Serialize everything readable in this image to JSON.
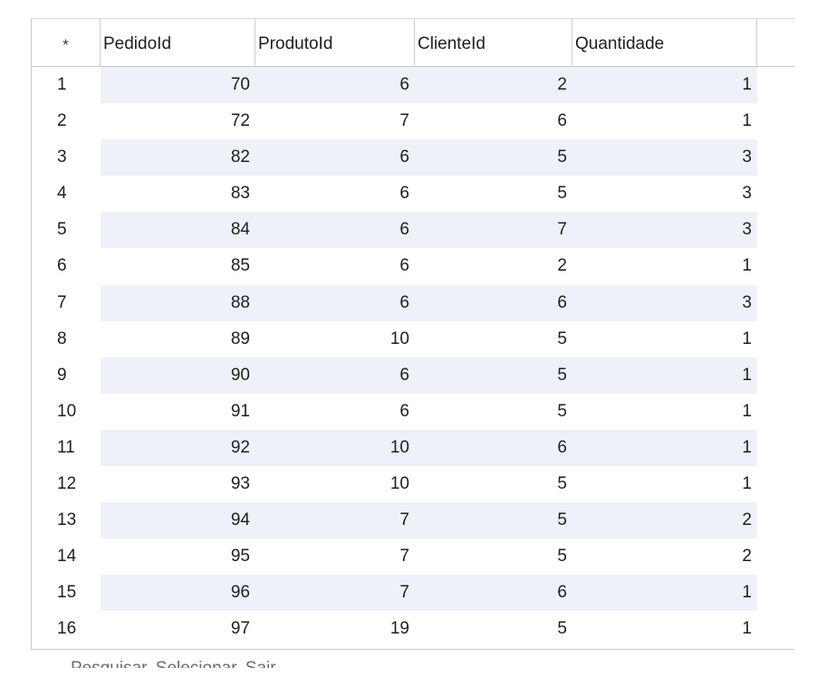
{
  "grid": {
    "corner_label": "*",
    "columns": [
      "PedidoId",
      "ProdutoId",
      "ClienteId",
      "Quantidade"
    ],
    "rows": [
      {
        "row": "1",
        "pedido": "70",
        "produto": "6",
        "cliente": "2",
        "quantidade": "1"
      },
      {
        "row": "2",
        "pedido": "72",
        "produto": "7",
        "cliente": "6",
        "quantidade": "1"
      },
      {
        "row": "3",
        "pedido": "82",
        "produto": "6",
        "cliente": "5",
        "quantidade": "3"
      },
      {
        "row": "4",
        "pedido": "83",
        "produto": "6",
        "cliente": "5",
        "quantidade": "3"
      },
      {
        "row": "5",
        "pedido": "84",
        "produto": "6",
        "cliente": "7",
        "quantidade": "3"
      },
      {
        "row": "6",
        "pedido": "85",
        "produto": "6",
        "cliente": "2",
        "quantidade": "1"
      },
      {
        "row": "7",
        "pedido": "88",
        "produto": "6",
        "cliente": "6",
        "quantidade": "3"
      },
      {
        "row": "8",
        "pedido": "89",
        "produto": "10",
        "cliente": "5",
        "quantidade": "1"
      },
      {
        "row": "9",
        "pedido": "90",
        "produto": "6",
        "cliente": "5",
        "quantidade": "1"
      },
      {
        "row": "10",
        "pedido": "91",
        "produto": "6",
        "cliente": "5",
        "quantidade": "1"
      },
      {
        "row": "11",
        "pedido": "92",
        "produto": "10",
        "cliente": "6",
        "quantidade": "1"
      },
      {
        "row": "12",
        "pedido": "93",
        "produto": "10",
        "cliente": "5",
        "quantidade": "1"
      },
      {
        "row": "13",
        "pedido": "94",
        "produto": "7",
        "cliente": "5",
        "quantidade": "2"
      },
      {
        "row": "14",
        "pedido": "95",
        "produto": "7",
        "cliente": "5",
        "quantidade": "2"
      },
      {
        "row": "15",
        "pedido": "96",
        "produto": "7",
        "cliente": "6",
        "quantidade": "1"
      },
      {
        "row": "16",
        "pedido": "97",
        "produto": "19",
        "cliente": "5",
        "quantidade": "1"
      }
    ]
  },
  "footer": {
    "partial_text": "Pesquisar  Selecionar  Sair"
  },
  "colors": {
    "alt_row_fill": "#eef1f7",
    "grid_border": "#c8c8c8"
  }
}
